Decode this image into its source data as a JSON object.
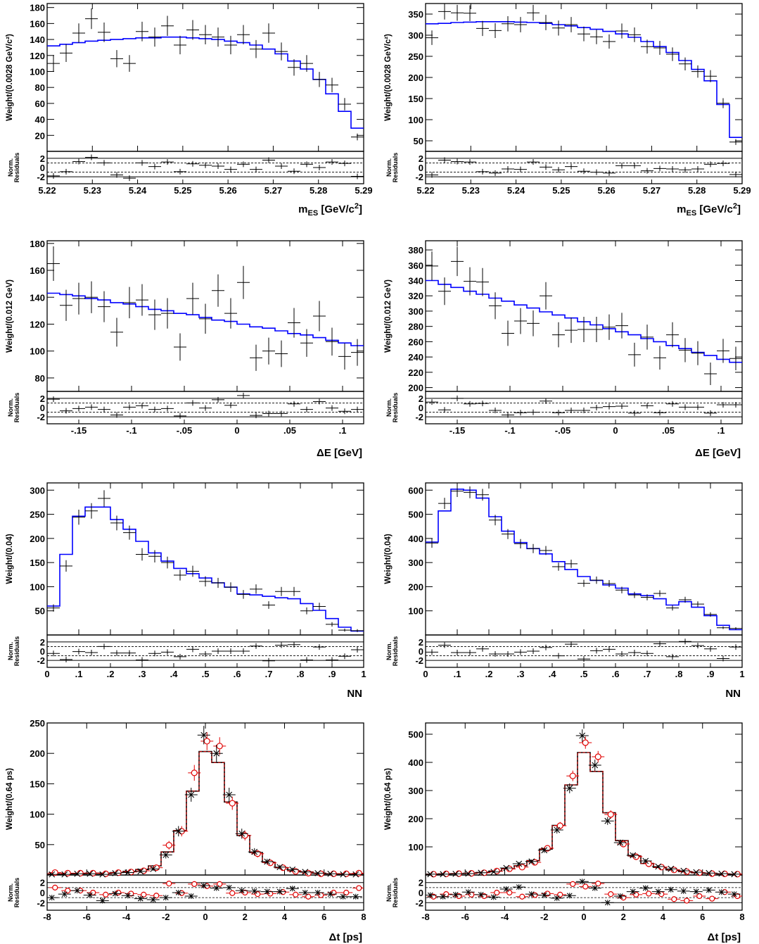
{
  "chart_data": [
    {
      "type": "histogram-fit",
      "ylabel": "Weight/(0.0028 GeV/c²)",
      "xlabel_main": "m",
      "xlabel_sub": "ES",
      "xlabel_rest": " [GeV/c",
      "xlabel_sup": "2",
      "xlabel_end": "]",
      "residual_label_1": "Norm.",
      "residual_label_2": "Residuals",
      "xlim": [
        5.22,
        5.29
      ],
      "ylim": [
        0,
        185
      ],
      "xticks": [
        5.22,
        5.23,
        5.24,
        5.25,
        5.26,
        5.27,
        5.28,
        5.29
      ],
      "yticks": [
        20,
        40,
        60,
        80,
        100,
        120,
        140,
        160,
        180
      ],
      "rticks": [
        -2,
        0,
        2
      ],
      "bin_width": 0.0028,
      "x": [
        5.2214,
        5.2242,
        5.227,
        5.2298,
        5.2326,
        5.2354,
        5.2382,
        5.241,
        5.2438,
        5.2466,
        5.2494,
        5.2522,
        5.255,
        5.2578,
        5.2606,
        5.2634,
        5.2662,
        5.269,
        5.2718,
        5.2746,
        5.2774,
        5.2802,
        5.283,
        5.2858,
        5.2886
      ],
      "data": [
        110,
        123,
        148,
        166,
        149,
        116,
        110,
        150,
        143,
        157,
        133,
        152,
        146,
        143,
        133,
        146,
        128,
        148,
        125,
        105,
        110,
        90,
        83,
        59,
        18
      ],
      "fit": [
        132,
        134,
        136,
        138,
        139,
        140,
        141,
        142,
        142,
        143,
        143,
        142,
        141,
        140,
        138,
        136,
        133,
        128,
        122,
        113,
        103,
        90,
        72,
        50,
        29
      ],
      "residuals": [
        -1.8,
        -0.9,
        1.3,
        2.2,
        1.0,
        -1.6,
        -2.3,
        1.0,
        0.2,
        1.2,
        -0.9,
        0.8,
        0.5,
        0.3,
        -0.4,
        0.7,
        -0.4,
        1.6,
        0.3,
        -0.8,
        0.7,
        0.0,
        1.2,
        0.9,
        -1.9
      ],
      "colors": {
        "data": "#000000",
        "fit": "#0000ff"
      }
    },
    {
      "type": "histogram-fit",
      "ylabel": "Weight/(0.0028 GeV/c²)",
      "xlabel_main": "m",
      "xlabel_sub": "ES",
      "xlabel_rest": " [GeV/c",
      "xlabel_sup": "2",
      "xlabel_end": "]",
      "residual_label_1": "Norm.",
      "residual_label_2": "Residuals",
      "xlim": [
        5.22,
        5.29
      ],
      "ylim": [
        25,
        375
      ],
      "xticks": [
        5.22,
        5.23,
        5.24,
        5.25,
        5.26,
        5.27,
        5.28,
        5.29
      ],
      "yticks": [
        50,
        100,
        150,
        200,
        250,
        300,
        350
      ],
      "rticks": [
        -2,
        0,
        2
      ],
      "bin_width": 0.0028,
      "x": [
        5.2214,
        5.2242,
        5.227,
        5.2298,
        5.2326,
        5.2354,
        5.2382,
        5.241,
        5.2438,
        5.2466,
        5.2494,
        5.2522,
        5.255,
        5.2578,
        5.2606,
        5.2634,
        5.2662,
        5.269,
        5.2718,
        5.2746,
        5.2774,
        5.2802,
        5.283,
        5.2858,
        5.2886
      ],
      "data": [
        294,
        356,
        353,
        352,
        316,
        311,
        327,
        325,
        353,
        330,
        317,
        325,
        303,
        296,
        285,
        310,
        301,
        273,
        270,
        255,
        232,
        214,
        203,
        139,
        47
      ],
      "fit": [
        327,
        328,
        330,
        331,
        332,
        332,
        332,
        331,
        330,
        328,
        325,
        322,
        318,
        314,
        309,
        303,
        295,
        285,
        273,
        259,
        240,
        219,
        192,
        136,
        58
      ],
      "residuals": [
        -1.6,
        1.6,
        1.3,
        1.2,
        -0.9,
        -1.2,
        -0.3,
        -0.4,
        1.2,
        0.1,
        -0.5,
        0.2,
        -0.8,
        -1.0,
        -1.2,
        0.4,
        0.4,
        -0.7,
        -0.2,
        -0.3,
        -0.5,
        -0.3,
        0.7,
        0.9,
        -1.5
      ],
      "colors": {
        "data": "#000000",
        "fit": "#0000ff"
      }
    },
    {
      "type": "histogram-fit",
      "ylabel": "Weight/(0.012 GeV)",
      "xlabel_main": "ΔE [GeV]",
      "xlabel_sub": "",
      "xlabel_rest": "",
      "xlabel_sup": "",
      "xlabel_end": "",
      "residual_label_1": "Norm.",
      "residual_label_2": "Residuals",
      "xlim": [
        -0.18,
        0.12
      ],
      "ylim": [
        70,
        182
      ],
      "xticks": [
        -0.15,
        -0.1,
        -0.05,
        0,
        0.05,
        0.1
      ],
      "yticks": [
        80,
        100,
        120,
        140,
        160,
        180
      ],
      "rticks": [
        -2,
        0,
        2
      ],
      "bin_width": 0.012,
      "x": [
        -0.174,
        -0.162,
        -0.15,
        -0.138,
        -0.126,
        -0.114,
        -0.102,
        -0.09,
        -0.078,
        -0.066,
        -0.054,
        -0.042,
        -0.03,
        -0.018,
        -0.006,
        0.006,
        0.018,
        0.03,
        0.042,
        0.054,
        0.066,
        0.078,
        0.09,
        0.102,
        0.114
      ],
      "data": [
        165,
        134,
        139,
        140,
        133,
        114,
        136,
        138,
        127,
        128,
        103,
        139,
        124,
        145,
        128,
        151,
        95,
        100,
        98,
        121,
        106,
        126,
        107,
        96,
        99
      ],
      "fit": [
        143,
        142,
        141,
        139,
        138,
        136,
        135,
        133,
        131,
        130,
        128,
        127,
        125,
        123,
        122,
        120,
        118,
        117,
        115,
        113,
        112,
        110,
        108,
        106,
        104
      ],
      "residuals": [
        1.8,
        -0.7,
        -0.2,
        0.1,
        -0.4,
        -1.6,
        0.1,
        0.4,
        -0.4,
        -0.2,
        -1.8,
        1.0,
        -0.1,
        1.7,
        0.5,
        2.6,
        -1.7,
        -1.3,
        -1.3,
        0.8,
        -0.4,
        1.3,
        -0.1,
        -0.8,
        -0.4
      ],
      "colors": {
        "data": "#000000",
        "fit": "#0000ff"
      }
    },
    {
      "type": "histogram-fit",
      "ylabel": "Weight/(0.012 GeV)",
      "xlabel_main": "ΔE [GeV]",
      "xlabel_sub": "",
      "xlabel_rest": "",
      "xlabel_sup": "",
      "xlabel_end": "",
      "residual_label_1": "Norm.",
      "residual_label_2": "Residuals",
      "xlim": [
        -0.18,
        0.12
      ],
      "ylim": [
        195,
        392
      ],
      "xticks": [
        -0.15,
        -0.1,
        -0.05,
        0,
        0.05,
        0.1
      ],
      "yticks": [
        200,
        220,
        240,
        260,
        280,
        300,
        320,
        340,
        360,
        380
      ],
      "rticks": [
        -2,
        0,
        2
      ],
      "bin_width": 0.012,
      "x": [
        -0.174,
        -0.162,
        -0.15,
        -0.138,
        -0.126,
        -0.114,
        -0.102,
        -0.09,
        -0.078,
        -0.066,
        -0.054,
        -0.042,
        -0.03,
        -0.018,
        -0.006,
        0.006,
        0.018,
        0.03,
        0.042,
        0.054,
        0.066,
        0.078,
        0.09,
        0.102,
        0.114
      ],
      "data": [
        359,
        326,
        365,
        339,
        338,
        307,
        271,
        287,
        284,
        320,
        269,
        275,
        276,
        276,
        279,
        281,
        243,
        266,
        239,
        269,
        249,
        245,
        218,
        248,
        238
      ],
      "fit": [
        340,
        335,
        331,
        326,
        322,
        317,
        313,
        308,
        304,
        299,
        295,
        291,
        286,
        282,
        277,
        273,
        269,
        264,
        260,
        255,
        251,
        246,
        242,
        237,
        233
      ],
      "residuals": [
        1.2,
        -0.5,
        2.0,
        0.8,
        0.9,
        -0.6,
        -1.6,
        -1.1,
        -1.0,
        1.4,
        -1.1,
        -0.6,
        -0.6,
        0.0,
        0.2,
        0.3,
        -1.2,
        0.4,
        -1.1,
        0.8,
        0.1,
        0.1,
        -1.2,
        0.6,
        0.6
      ],
      "colors": {
        "data": "#000000",
        "fit": "#0000ff"
      }
    },
    {
      "type": "histogram-fit",
      "ylabel": "Weight/(0.04)",
      "xlabel_main": "NN",
      "xlabel_sub": "",
      "xlabel_rest": "",
      "xlabel_sup": "",
      "xlabel_end": "",
      "residual_label_1": "Norm.",
      "residual_label_2": "Residuals",
      "xlim": [
        0,
        1
      ],
      "ylim": [
        0,
        315
      ],
      "xticks": [
        0,
        0.1,
        0.2,
        0.3,
        0.4,
        0.5,
        0.6,
        0.7,
        0.8,
        0.9,
        1
      ],
      "yticks": [
        50,
        100,
        150,
        200,
        250,
        300
      ],
      "rticks": [
        -2,
        0,
        2
      ],
      "bin_width": 0.04,
      "x": [
        0.02,
        0.06,
        0.1,
        0.14,
        0.18,
        0.22,
        0.26,
        0.3,
        0.34,
        0.38,
        0.42,
        0.46,
        0.5,
        0.54,
        0.58,
        0.62,
        0.66,
        0.7,
        0.74,
        0.78,
        0.82,
        0.86,
        0.9,
        0.94,
        0.98
      ],
      "data": [
        56,
        143,
        244,
        257,
        283,
        232,
        212,
        167,
        163,
        150,
        124,
        132,
        111,
        108,
        99,
        84,
        95,
        62,
        90,
        90,
        50,
        59,
        22,
        10,
        9
      ],
      "fit": [
        60,
        167,
        246,
        265,
        265,
        239,
        219,
        194,
        170,
        153,
        138,
        127,
        118,
        108,
        99,
        85,
        83,
        80,
        77,
        75,
        65,
        51,
        34,
        16,
        8
      ],
      "residuals": [
        -0.5,
        -1.8,
        -0.1,
        -0.3,
        1.0,
        -0.4,
        -0.4,
        -1.9,
        -0.5,
        -0.2,
        -1.2,
        0.4,
        -0.6,
        0.0,
        0.0,
        0.0,
        1.1,
        -2.1,
        1.3,
        1.4,
        -1.9,
        0.9,
        -1.9,
        -1.1,
        0.3
      ],
      "colors": {
        "data": "#000000",
        "fit": "#0000ff"
      }
    },
    {
      "type": "histogram-fit",
      "ylabel": "Weight/(0.04)",
      "xlabel_main": "NN",
      "xlabel_sub": "",
      "xlabel_rest": "",
      "xlabel_sup": "",
      "xlabel_end": "",
      "residual_label_1": "Norm.",
      "residual_label_2": "Residuals",
      "xlim": [
        0,
        1
      ],
      "ylim": [
        0,
        630
      ],
      "xticks": [
        0,
        0.1,
        0.2,
        0.3,
        0.4,
        0.5,
        0.6,
        0.7,
        0.8,
        0.9,
        1
      ],
      "yticks": [
        100,
        200,
        300,
        400,
        500,
        600
      ],
      "rticks": [
        -2,
        0,
        2
      ],
      "bin_width": 0.04,
      "x": [
        0.02,
        0.06,
        0.1,
        0.14,
        0.18,
        0.22,
        0.26,
        0.3,
        0.34,
        0.38,
        0.42,
        0.46,
        0.5,
        0.54,
        0.58,
        0.62,
        0.66,
        0.7,
        0.74,
        0.78,
        0.82,
        0.86,
        0.9,
        0.94,
        0.98
      ],
      "data": [
        381,
        545,
        596,
        591,
        581,
        476,
        418,
        378,
        358,
        350,
        283,
        295,
        214,
        227,
        213,
        186,
        166,
        156,
        172,
        112,
        146,
        128,
        85,
        30,
        27
      ],
      "fit": [
        385,
        514,
        604,
        600,
        567,
        490,
        430,
        383,
        358,
        336,
        304,
        271,
        242,
        226,
        207,
        194,
        170,
        163,
        150,
        124,
        138,
        115,
        80,
        40,
        22
      ],
      "residuals": [
        -0.2,
        1.3,
        -0.3,
        -0.3,
        0.5,
        -0.6,
        -0.6,
        -0.2,
        0.0,
        0.8,
        -1.0,
        1.5,
        -1.7,
        0.1,
        0.4,
        -0.6,
        -0.3,
        -0.5,
        1.6,
        -1.2,
        2.1,
        1.2,
        0.5,
        -1.6,
        0.9
      ],
      "colors": {
        "data": "#000000",
        "fit": "#0000ff"
      }
    },
    {
      "type": "histogram-fit-two-flavor",
      "ylabel": "Weight/(0.64 ps)",
      "xlabel_main": "Δt [ps]",
      "xlabel_sub": "",
      "xlabel_rest": "",
      "xlabel_sup": "",
      "xlabel_end": "",
      "residual_label_1": "Norm.",
      "residual_label_2": "Residuals",
      "xlim": [
        -8,
        8
      ],
      "ylim": [
        0,
        250
      ],
      "xticks": [
        -8,
        -6,
        -4,
        -2,
        0,
        2,
        4,
        6,
        8
      ],
      "yticks": [
        50,
        100,
        150,
        200,
        250
      ],
      "rticks": [
        -2,
        0,
        2
      ],
      "bin_width": 0.64,
      "x": [
        -7.68,
        -7.04,
        -6.4,
        -5.76,
        -5.12,
        -4.48,
        -3.84,
        -3.2,
        -2.56,
        -1.92,
        -1.28,
        -0.64,
        0.0,
        0.64,
        1.28,
        1.92,
        2.56,
        3.2,
        3.84,
        4.48,
        5.12,
        5.76,
        6.4,
        7.04,
        7.68
      ],
      "data_x": [
        1,
        1,
        2,
        2,
        1,
        3,
        4,
        6,
        10,
        33,
        72,
        132,
        230,
        200,
        132,
        68,
        38,
        22,
        13,
        9,
        5,
        3,
        2,
        1,
        1
      ],
      "data_o": [
        4,
        3,
        3,
        3,
        2,
        4,
        5,
        7,
        12,
        49,
        72,
        168,
        220,
        212,
        118,
        65,
        35,
        20,
        12,
        6,
        3,
        2,
        2,
        2,
        3
      ],
      "fit": [
        2,
        2,
        2,
        3,
        3,
        4,
        6,
        9,
        15,
        38,
        73,
        138,
        203,
        185,
        120,
        65,
        37,
        21,
        12,
        7,
        5,
        3,
        2,
        2,
        2
      ],
      "residuals_x": [
        -1.0,
        -0.3,
        0.4,
        -0.5,
        -1.6,
        -0.2,
        -0.6,
        -1.2,
        -1.4,
        -1.0,
        0.0,
        -0.7,
        1.4,
        0.9,
        1.0,
        0.4,
        0.3,
        0.2,
        0.2,
        0.8,
        0.0,
        0.0,
        -0.3,
        -0.8,
        -0.8
      ],
      "residuals_o": [
        1.0,
        0.4,
        0.4,
        0.0,
        -0.4,
        0.0,
        -0.2,
        -0.4,
        -0.6,
        1.8,
        -0.1,
        1.7,
        1.3,
        1.7,
        -0.1,
        0.0,
        -0.3,
        -0.2,
        0.1,
        -0.4,
        -0.8,
        -0.5,
        0.0,
        0.0,
        0.9
      ],
      "colors": {
        "data_x": "#000000",
        "data_o": "#e00000",
        "fit": "#000000",
        "fit2": "#e00000"
      }
    },
    {
      "type": "histogram-fit-two-flavor",
      "ylabel": "Weight/(0.64 ps)",
      "xlabel_main": "Δt [ps]",
      "xlabel_sub": "",
      "xlabel_rest": "",
      "xlabel_sup": "",
      "xlabel_end": "",
      "residual_label_1": "Norm.",
      "residual_label_2": "Residuals",
      "xlim": [
        -8,
        8
      ],
      "ylim": [
        0,
        540
      ],
      "xticks": [
        -8,
        -6,
        -4,
        -2,
        0,
        2,
        4,
        6,
        8
      ],
      "yticks": [
        100,
        200,
        300,
        400,
        500
      ],
      "rticks": [
        -2,
        0,
        2
      ],
      "bin_width": 0.64,
      "x": [
        -7.68,
        -7.04,
        -6.4,
        -5.76,
        -5.12,
        -4.48,
        -3.84,
        -3.2,
        -2.56,
        -1.92,
        -1.28,
        -0.64,
        0.0,
        0.64,
        1.28,
        1.92,
        2.56,
        3.2,
        3.84,
        4.48,
        5.12,
        5.76,
        6.4,
        7.04,
        7.68
      ],
      "data_x": [
        3,
        3,
        4,
        5,
        8,
        11,
        25,
        40,
        48,
        88,
        160,
        308,
        495,
        390,
        192,
        115,
        70,
        50,
        30,
        22,
        15,
        10,
        7,
        5,
        3
      ],
      "data_o": [
        3,
        4,
        5,
        6,
        8,
        14,
        22,
        28,
        45,
        95,
        175,
        352,
        470,
        420,
        215,
        110,
        65,
        40,
        28,
        18,
        12,
        8,
        5,
        4,
        3
      ],
      "fit": [
        3,
        4,
        5,
        6,
        9,
        14,
        22,
        33,
        51,
        92,
        176,
        320,
        435,
        368,
        221,
        122,
        68,
        41,
        27,
        18,
        12,
        8,
        6,
        4,
        3
      ],
      "residuals_x": [
        -0.5,
        -0.8,
        -0.4,
        0.1,
        -0.4,
        -0.9,
        0.7,
        1.1,
        -0.3,
        -0.5,
        -1.1,
        -0.6,
        2.2,
        0.9,
        -2.0,
        -0.7,
        0.2,
        0.9,
        0.2,
        0.6,
        0.3,
        0.2,
        0.5,
        0.1,
        -0.3
      ],
      "residuals_o": [
        -0.8,
        -0.3,
        -0.7,
        -0.4,
        -0.7,
        0.0,
        0.0,
        -0.8,
        -0.5,
        -0.2,
        -0.4,
        1.7,
        1.2,
        1.8,
        -0.3,
        -1.0,
        -0.4,
        -0.2,
        -0.3,
        -1.3,
        -1.6,
        -0.7,
        -1.2,
        0.1,
        -0.7
      ],
      "colors": {
        "data_x": "#000000",
        "data_o": "#e00000",
        "fit": "#000000",
        "fit2": "#e00000"
      }
    }
  ]
}
